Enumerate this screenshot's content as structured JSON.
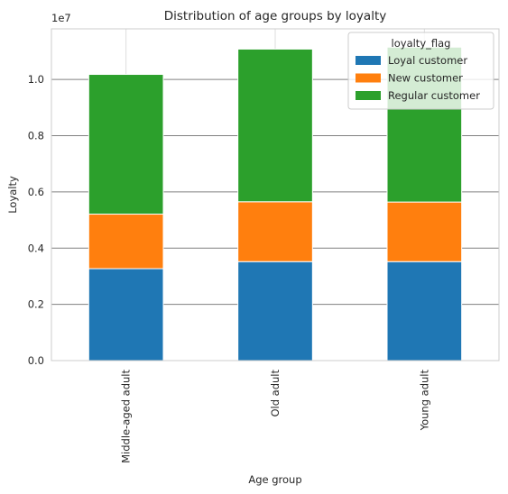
{
  "chart_data": {
    "type": "bar",
    "stacked": true,
    "title": "Distribution of age groups by loyalty",
    "xlabel": "Age group",
    "ylabel": "Loyalty",
    "offset_label": "1e7",
    "categories": [
      "Middle-aged adult",
      "Old adult",
      "Young adult"
    ],
    "series": [
      {
        "name": "Loyal customer",
        "color": "#1f77b4",
        "values": [
          3270000,
          3520000,
          3520000
        ]
      },
      {
        "name": "New customer",
        "color": "#ff7f0e",
        "values": [
          1940000,
          2130000,
          2120000
        ]
      },
      {
        "name": "Regular customer",
        "color": "#2ca02c",
        "values": [
          4970000,
          5430000,
          5510000
        ]
      }
    ],
    "ylim": [
      0,
      11800000
    ],
    "yticks": [
      0,
      2000000,
      4000000,
      6000000,
      8000000,
      10000000
    ],
    "ytick_labels": [
      "0.0",
      "0.2",
      "0.4",
      "0.6",
      "0.8",
      "1.0"
    ],
    "legend": {
      "title": "loyalty_flag",
      "placement": "top-right"
    },
    "grid": true
  }
}
